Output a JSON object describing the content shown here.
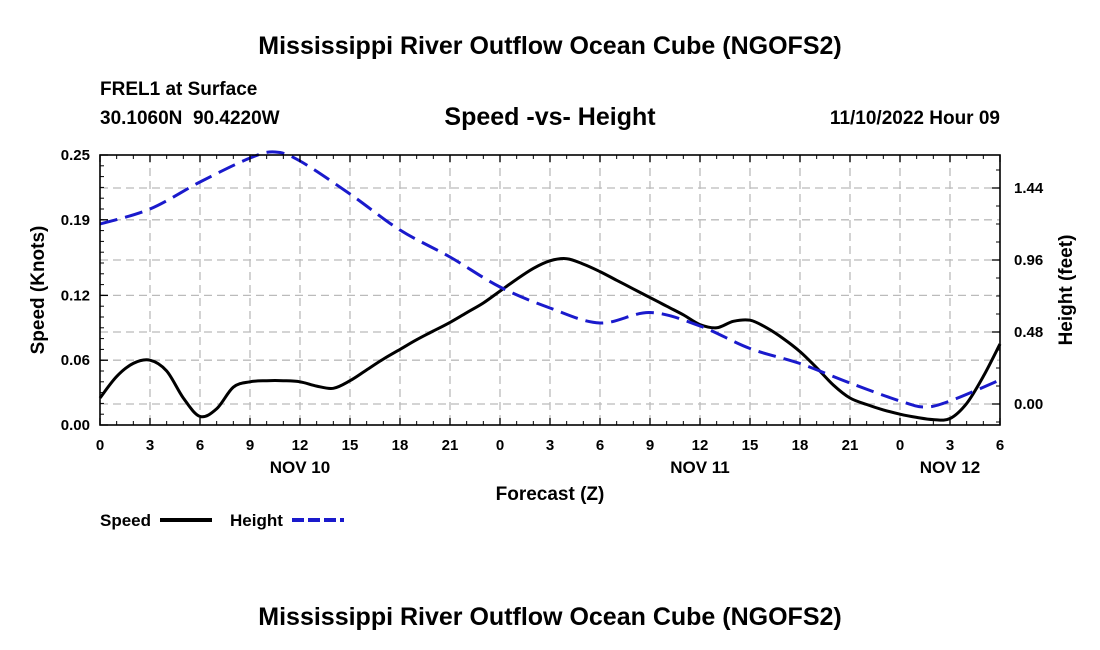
{
  "page": {
    "title": "Mississippi River Outflow Ocean Cube (NGOFS2)",
    "footer_title": "Mississippi River Outflow Ocean Cube (NGOFS2)"
  },
  "station": {
    "name": "FREL1 at Surface",
    "coords": "30.1060N  90.4220W"
  },
  "chart_data": {
    "type": "line",
    "title": "Speed -vs- Height",
    "date_label": "11/10/2022 Hour 09",
    "xlabel": "Forecast (Z)",
    "ylabel": "Speed (Knots)",
    "y2label": "Height (feet)",
    "xlim": [
      0,
      54
    ],
    "ylim": [
      0,
      0.25
    ],
    "y2lim": [
      -0.14,
      1.66
    ],
    "x_ticks": [
      0,
      3,
      6,
      9,
      12,
      15,
      18,
      21,
      24,
      27,
      30,
      33,
      36,
      39,
      42,
      45,
      48,
      51,
      54
    ],
    "x_tick_labels": [
      "0",
      "3",
      "6",
      "9",
      "12",
      "15",
      "18",
      "21",
      "0",
      "3",
      "6",
      "9",
      "12",
      "15",
      "18",
      "21",
      "0",
      "3",
      "6"
    ],
    "y_ticks": [
      0,
      0.06,
      0.12,
      0.19,
      0.25
    ],
    "y_tick_labels": [
      "0.00",
      "0.06",
      "0.12",
      "0.19",
      "0.25"
    ],
    "y2_ticks": [
      0,
      0.48,
      0.96,
      1.44
    ],
    "y2_tick_labels": [
      "0.00",
      "0.48",
      "0.96",
      "1.44"
    ],
    "day_labels": [
      {
        "x": 12,
        "label": "NOV 10"
      },
      {
        "x": 36,
        "label": "NOV 11"
      },
      {
        "x": 51,
        "label": "NOV 12"
      }
    ],
    "grid": true,
    "legend_position": "bottom-left",
    "series": [
      {
        "name": "Speed",
        "axis": "left",
        "color": "#000000",
        "style": "solid",
        "x": [
          0,
          1,
          2,
          3,
          4,
          5,
          6,
          7,
          8,
          9,
          10,
          11,
          12,
          13,
          14,
          15,
          16,
          17,
          18,
          19,
          20,
          21,
          22,
          23,
          24,
          25,
          26,
          27,
          28,
          29,
          30,
          31,
          32,
          33,
          34,
          35,
          36,
          37,
          38,
          39,
          40,
          41,
          42,
          43,
          44,
          45,
          46,
          47,
          48,
          49,
          50,
          51,
          52,
          53,
          54
        ],
        "values": [
          0.025,
          0.045,
          0.057,
          0.06,
          0.05,
          0.025,
          0.008,
          0.015,
          0.035,
          0.04,
          0.041,
          0.041,
          0.04,
          0.036,
          0.034,
          0.041,
          0.051,
          0.061,
          0.07,
          0.079,
          0.087,
          0.095,
          0.104,
          0.113,
          0.124,
          0.135,
          0.145,
          0.152,
          0.154,
          0.149,
          0.142,
          0.134,
          0.126,
          0.118,
          0.11,
          0.102,
          0.093,
          0.09,
          0.096,
          0.097,
          0.09,
          0.08,
          0.068,
          0.053,
          0.037,
          0.025,
          0.019,
          0.014,
          0.01,
          0.007,
          0.005,
          0.006,
          0.02,
          0.045,
          0.075
        ]
      },
      {
        "name": "Height",
        "axis": "right",
        "color": "#1a1acc",
        "style": "dashed",
        "x": [
          0,
          3,
          6,
          9,
          10.5,
          12,
          15,
          18,
          21,
          24,
          27,
          30,
          33,
          36,
          39,
          42,
          45,
          48,
          49.5,
          51,
          54
        ],
        "values": [
          1.2,
          1.3,
          1.48,
          1.64,
          1.68,
          1.62,
          1.4,
          1.16,
          0.98,
          0.78,
          0.64,
          0.54,
          0.61,
          0.52,
          0.37,
          0.27,
          0.14,
          0.02,
          -0.02,
          0.02,
          0.16
        ]
      }
    ]
  }
}
